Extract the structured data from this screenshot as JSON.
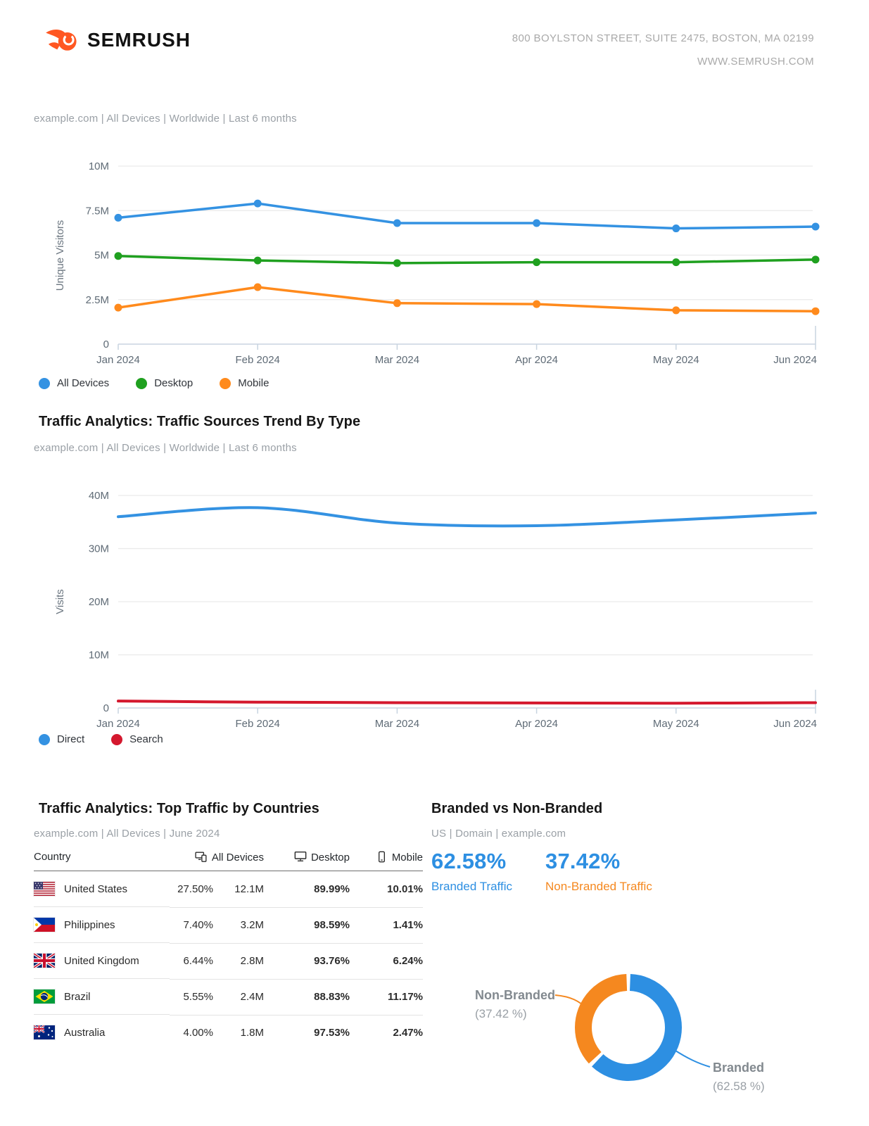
{
  "header": {
    "logo_text": "SEMRUSH",
    "address_line1": "800 BOYLSTON STREET, SUITE 2475, BOSTON, MA 02199",
    "address_line2": "WWW.SEMRUSH.COM"
  },
  "colors": {
    "grid": "#e9e9e9",
    "axis": "#c8d4e0",
    "blue": "#3492e2",
    "green": "#1fa01f",
    "orange": "#ff8a1c",
    "red": "#d4182e",
    "donut_blue": "#2d8fe2",
    "donut_orange": "#f5881f"
  },
  "chart_data": [
    {
      "type": "line",
      "title": "",
      "subtitle": "example.com | All Devices | Worldwide | Last 6 months",
      "ylabel": "Unique Visitors",
      "x": [
        "Jan 2024",
        "Feb 2024",
        "Mar 2024",
        "Apr 2024",
        "May 2024",
        "Jun 2024"
      ],
      "ylim": [
        0,
        10000000
      ],
      "yticks": [
        {
          "v": 10,
          "label": "10M"
        },
        {
          "v": 7.5,
          "label": "7.5M"
        },
        {
          "v": 5,
          "label": "5M"
        },
        {
          "v": 2.5,
          "label": "2.5M"
        },
        {
          "v": 0,
          "label": "0"
        }
      ],
      "markers": true,
      "grid": true,
      "legend_position": "bottom",
      "series": [
        {
          "name": "All Devices",
          "color": "#3492e2",
          "values": [
            7.1,
            7.9,
            6.8,
            6.8,
            6.5,
            6.6
          ]
        },
        {
          "name": "Desktop",
          "color": "#1fa01f",
          "values": [
            4.95,
            4.7,
            4.55,
            4.6,
            4.6,
            4.75
          ]
        },
        {
          "name": "Mobile",
          "color": "#ff8a1c",
          "values": [
            2.05,
            3.2,
            2.3,
            2.25,
            1.9,
            1.85
          ]
        }
      ],
      "unit": "M"
    },
    {
      "type": "line",
      "title": "Traffic Analytics: Traffic Sources Trend By Type",
      "subtitle": "example.com | All Devices | Worldwide | Last 6 months",
      "ylabel": "Visits",
      "x": [
        "Jan 2024",
        "Feb 2024",
        "Mar 2024",
        "Apr 2024",
        "May 2024",
        "Jun 2024"
      ],
      "ylim": [
        0,
        40000000
      ],
      "yticks": [
        {
          "v": 40,
          "label": "40M"
        },
        {
          "v": 30,
          "label": "30M"
        },
        {
          "v": 20,
          "label": "20M"
        },
        {
          "v": 10,
          "label": "10M"
        },
        {
          "v": 0,
          "label": "0"
        }
      ],
      "markers": false,
      "grid": true,
      "legend_position": "bottom",
      "series": [
        {
          "name": "Direct",
          "color": "#3492e2",
          "values": [
            36,
            37.7,
            34.8,
            34.3,
            35.4,
            36.7
          ]
        },
        {
          "name": "Search",
          "color": "#d4182e",
          "values": [
            1.3,
            1.1,
            1.0,
            0.95,
            0.9,
            1.0
          ]
        }
      ],
      "unit": "M"
    },
    {
      "type": "pie",
      "title": "Branded vs Non-Branded",
      "subtitle": "US | Domain | example.com",
      "stats": [
        {
          "value": "62.58%",
          "label": "Branded Traffic"
        },
        {
          "value": "37.42%",
          "label": "Non-Branded Traffic"
        }
      ],
      "slices": [
        {
          "label": "Branded",
          "value": 62.58,
          "color": "#2d8fe2"
        },
        {
          "label": "Non-Branded",
          "value": 37.42,
          "color": "#f5881f"
        }
      ],
      "callouts": [
        {
          "name": "Non-Branded",
          "value": "(37.42 %)"
        },
        {
          "name": "Branded",
          "value": "(62.58 %)"
        }
      ]
    }
  ],
  "countries_table": {
    "title": "Traffic Analytics: Top Traffic by Countries",
    "subtitle": "example.com | All Devices | June 2024",
    "columns": [
      "Country",
      "All Devices",
      "Desktop",
      "Mobile"
    ],
    "rows": [
      {
        "country": "United States",
        "flag": "us",
        "share": "27.50%",
        "visits": "12.1M",
        "desktop": "89.99%",
        "mobile": "10.01%"
      },
      {
        "country": "Philippines",
        "flag": "ph",
        "share": "7.40%",
        "visits": "3.2M",
        "desktop": "98.59%",
        "mobile": "1.41%"
      },
      {
        "country": "United Kingdom",
        "flag": "gb",
        "share": "6.44%",
        "visits": "2.8M",
        "desktop": "93.76%",
        "mobile": "6.24%"
      },
      {
        "country": "Brazil",
        "flag": "br",
        "share": "5.55%",
        "visits": "2.4M",
        "desktop": "88.83%",
        "mobile": "11.17%"
      },
      {
        "country": "Australia",
        "flag": "au",
        "share": "4.00%",
        "visits": "1.8M",
        "desktop": "97.53%",
        "mobile": "2.47%"
      }
    ]
  }
}
